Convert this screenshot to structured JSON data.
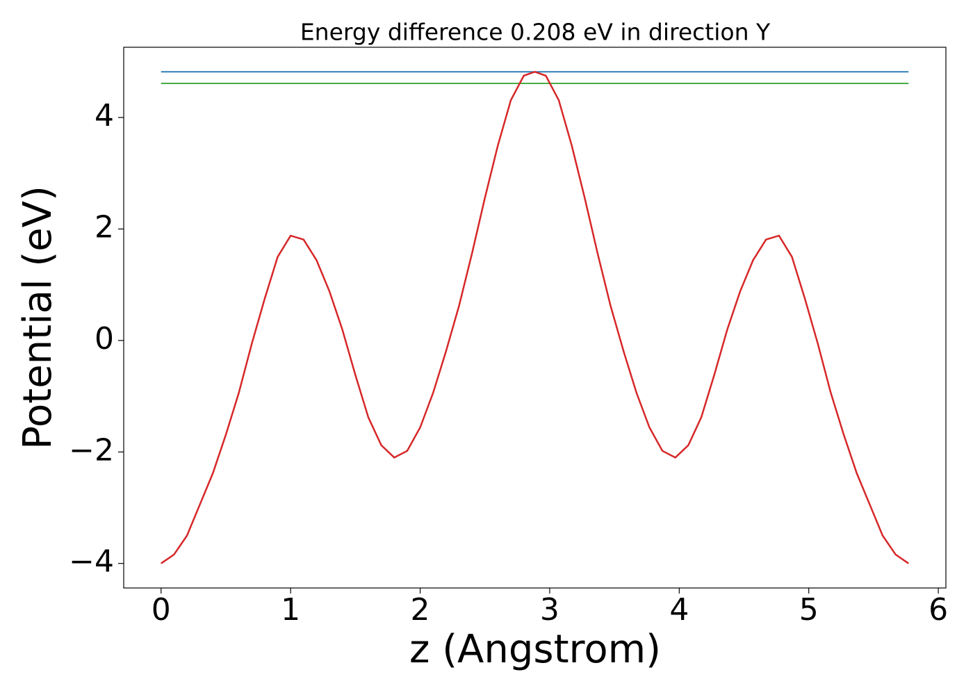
{
  "chart_data": {
    "type": "line",
    "title": "Energy difference 0.208 eV in direction Y",
    "x_label": "z (Angstrom)",
    "y_label": "Potential (eV)",
    "xlim": [
      -0.2885,
      6.0585
    ],
    "ylim": [
      -4.44,
      5.26
    ],
    "xticks": [
      0,
      1,
      2,
      3,
      4,
      5,
      6
    ],
    "yticks": [
      {
        "value": -4,
        "label": "−4"
      },
      {
        "value": -2,
        "label": "−2"
      },
      0,
      2,
      4
    ],
    "series": [
      {
        "color": "#1f77b4",
        "x": [
          0,
          5.77
        ],
        "values": [
          4.82,
          4.82
        ]
      },
      {
        "color": "#2ca02c",
        "x": [
          0,
          5.77
        ],
        "values": [
          4.612,
          4.612
        ]
      },
      {
        "color": "#d62728",
        "x": [
          0,
          0.1,
          0.2,
          0.3,
          0.4,
          0.5,
          0.6,
          0.7,
          0.8,
          0.9,
          1.0,
          1.1,
          1.2,
          1.3,
          1.4,
          1.5,
          1.6,
          1.7,
          1.8,
          1.9,
          2.0,
          2.1,
          2.2,
          2.3,
          2.4,
          2.5,
          2.6,
          2.7,
          2.8,
          2.885,
          2.97,
          3.07,
          3.17,
          3.27,
          3.37,
          3.47,
          3.57,
          3.67,
          3.77,
          3.87,
          3.97,
          4.07,
          4.17,
          4.27,
          4.37,
          4.47,
          4.57,
          4.67,
          4.77,
          4.87,
          4.97,
          5.07,
          5.17,
          5.27,
          5.37,
          5.47,
          5.57,
          5.67,
          5.77
        ],
        "values": [
          -4.0,
          -3.84,
          -3.5,
          -2.94,
          -2.38,
          -1.69,
          -0.94,
          -0.06,
          0.75,
          1.5,
          1.88,
          1.81,
          1.44,
          0.88,
          0.19,
          -0.62,
          -1.38,
          -1.88,
          -2.1,
          -1.98,
          -1.56,
          -0.94,
          -0.19,
          0.62,
          1.56,
          2.56,
          3.5,
          4.31,
          4.75,
          4.82,
          4.75,
          4.31,
          3.5,
          2.56,
          1.56,
          0.62,
          -0.19,
          -0.94,
          -1.56,
          -1.98,
          -2.1,
          -1.88,
          -1.38,
          -0.62,
          0.19,
          0.88,
          1.44,
          1.81,
          1.88,
          1.5,
          0.75,
          -0.06,
          -0.94,
          -1.69,
          -2.38,
          -2.94,
          -3.5,
          -3.84,
          -4.0
        ]
      }
    ]
  }
}
